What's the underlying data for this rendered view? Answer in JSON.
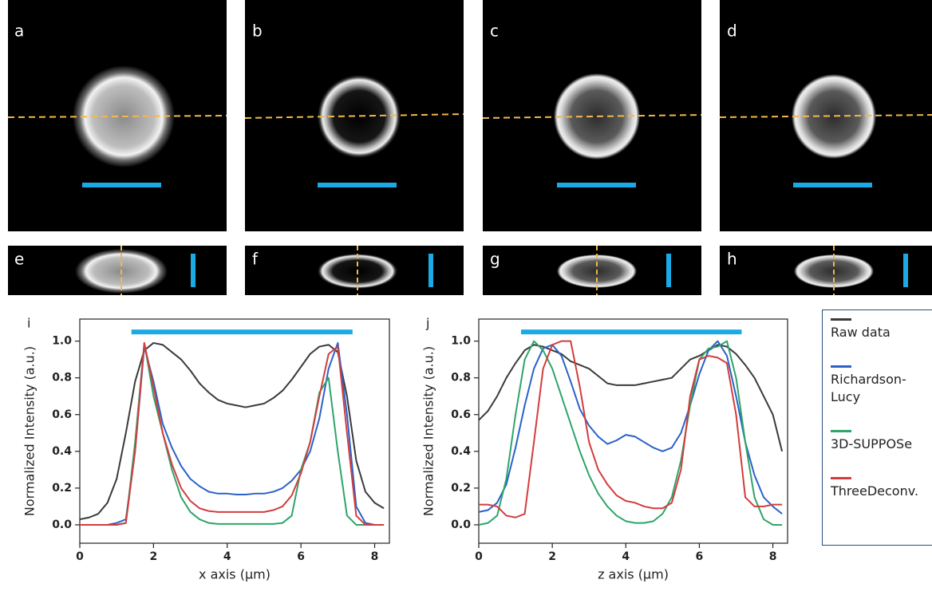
{
  "panel_labels": [
    "a",
    "b",
    "c",
    "d",
    "e",
    "f",
    "g",
    "h"
  ],
  "chart_data": [
    {
      "type": "line",
      "label": "i",
      "x_label": "x axis (µm)",
      "y_label": "Normalized Intensity (a.u.)",
      "xlim": [
        0,
        8.4
      ],
      "xticks": [
        0,
        2,
        4,
        6,
        8
      ],
      "ylim": [
        -0.1,
        1.12
      ],
      "yticks": [
        {
          "value": 0,
          "label": "0.0"
        },
        0.2,
        0.4,
        0.6,
        0.8,
        {
          "value": 1,
          "label": "1.0"
        }
      ],
      "scale_bar": {
        "x": [
          1.4,
          7.4
        ],
        "y": 1.05,
        "color": "#1aabe6"
      },
      "x": [
        0,
        0.25,
        0.5,
        0.75,
        1,
        1.25,
        1.5,
        1.75,
        2,
        2.25,
        2.5,
        2.75,
        3,
        3.25,
        3.5,
        3.75,
        4,
        4.25,
        4.5,
        4.75,
        5,
        5.25,
        5.5,
        5.75,
        6,
        6.25,
        6.5,
        6.75,
        7,
        7.25,
        7.5,
        7.75,
        8,
        8.25
      ],
      "series": [
        {
          "color": "#3a3a3a",
          "values": [
            0.03,
            0.04,
            0.06,
            0.12,
            0.25,
            0.5,
            0.78,
            0.95,
            0.99,
            0.98,
            0.94,
            0.9,
            0.84,
            0.77,
            0.72,
            0.68,
            0.66,
            0.65,
            0.64,
            0.65,
            0.66,
            0.69,
            0.73,
            0.79,
            0.86,
            0.93,
            0.97,
            0.98,
            0.94,
            0.7,
            0.35,
            0.18,
            0.12,
            0.09
          ]
        },
        {
          "color": "#2a62c9",
          "values": [
            0,
            0,
            0,
            0,
            0.01,
            0.03,
            0.4,
            0.97,
            0.78,
            0.55,
            0.42,
            0.32,
            0.25,
            0.21,
            0.18,
            0.17,
            0.17,
            0.165,
            0.165,
            0.17,
            0.17,
            0.18,
            0.2,
            0.24,
            0.3,
            0.4,
            0.58,
            0.85,
            0.99,
            0.6,
            0.1,
            0.01,
            0,
            0
          ]
        },
        {
          "color": "#2ea56a",
          "values": [
            0,
            0,
            0,
            0,
            0,
            0.01,
            0.45,
            0.99,
            0.7,
            0.5,
            0.3,
            0.15,
            0.07,
            0.03,
            0.01,
            0.005,
            0.005,
            0.005,
            0.005,
            0.005,
            0.005,
            0.005,
            0.01,
            0.05,
            0.3,
            0.45,
            0.72,
            0.8,
            0.4,
            0.05,
            0,
            0,
            0,
            0
          ]
        },
        {
          "color": "#d43c3c",
          "values": [
            0,
            0,
            0,
            0,
            0,
            0.01,
            0.4,
            0.99,
            0.75,
            0.5,
            0.33,
            0.2,
            0.13,
            0.09,
            0.075,
            0.07,
            0.07,
            0.07,
            0.07,
            0.07,
            0.07,
            0.08,
            0.1,
            0.16,
            0.28,
            0.45,
            0.7,
            0.93,
            0.97,
            0.5,
            0.05,
            0,
            0,
            0
          ]
        }
      ]
    },
    {
      "type": "line",
      "label": "j",
      "x_label": "z axis (µm)",
      "y_label": "Normalized Intensity (a.u.)",
      "xlim": [
        0,
        8.4
      ],
      "xticks": [
        0,
        2,
        4,
        6,
        8
      ],
      "ylim": [
        -0.1,
        1.12
      ],
      "yticks": [
        {
          "value": 0,
          "label": "0.0"
        },
        0.2,
        0.4,
        0.6,
        0.8,
        {
          "value": 1,
          "label": "1.0"
        }
      ],
      "scale_bar": {
        "x": [
          1.15,
          7.15
        ],
        "y": 1.05,
        "color": "#1aabe6"
      },
      "legend": "right",
      "x": [
        0,
        0.25,
        0.5,
        0.75,
        1,
        1.25,
        1.5,
        1.75,
        2,
        2.25,
        2.5,
        2.75,
        3,
        3.25,
        3.5,
        3.75,
        4,
        4.25,
        4.5,
        4.75,
        5,
        5.25,
        5.5,
        5.75,
        6,
        6.25,
        6.5,
        6.75,
        7,
        7.25,
        7.5,
        7.75,
        8,
        8.25
      ],
      "series": [
        {
          "name": "Raw data",
          "color": "#3a3a3a",
          "values": [
            0.57,
            0.62,
            0.7,
            0.8,
            0.88,
            0.95,
            0.98,
            0.97,
            0.95,
            0.93,
            0.89,
            0.87,
            0.85,
            0.81,
            0.77,
            0.76,
            0.76,
            0.76,
            0.77,
            0.78,
            0.79,
            0.8,
            0.85,
            0.9,
            0.92,
            0.95,
            0.98,
            0.97,
            0.93,
            0.87,
            0.8,
            0.7,
            0.6,
            0.4
          ]
        },
        {
          "name": "Richardson-Lucy",
          "color": "#2a62c9",
          "values": [
            0.07,
            0.08,
            0.12,
            0.22,
            0.42,
            0.65,
            0.85,
            0.96,
            0.98,
            0.92,
            0.78,
            0.63,
            0.54,
            0.48,
            0.44,
            0.46,
            0.49,
            0.48,
            0.45,
            0.42,
            0.4,
            0.42,
            0.5,
            0.65,
            0.82,
            0.95,
            1.0,
            0.92,
            0.7,
            0.45,
            0.27,
            0.15,
            0.1,
            0.06
          ]
        },
        {
          "name": "3D-SUPPOSe",
          "color": "#2ea56a",
          "values": [
            0,
            0.01,
            0.05,
            0.25,
            0.6,
            0.9,
            1.0,
            0.95,
            0.85,
            0.7,
            0.55,
            0.4,
            0.27,
            0.17,
            0.1,
            0.05,
            0.02,
            0.01,
            0.01,
            0.02,
            0.06,
            0.15,
            0.35,
            0.65,
            0.9,
            0.96,
            0.97,
            1.0,
            0.8,
            0.45,
            0.15,
            0.03,
            0,
            0
          ]
        },
        {
          "name": "ThreeDeconv.",
          "color": "#d43c3c",
          "values": [
            0.11,
            0.11,
            0.1,
            0.05,
            0.04,
            0.06,
            0.45,
            0.85,
            0.98,
            1.0,
            1.0,
            0.75,
            0.45,
            0.3,
            0.22,
            0.16,
            0.13,
            0.12,
            0.1,
            0.09,
            0.09,
            0.12,
            0.3,
            0.7,
            0.9,
            0.92,
            0.91,
            0.88,
            0.6,
            0.15,
            0.1,
            0.1,
            0.11,
            0.11
          ]
        }
      ]
    }
  ]
}
